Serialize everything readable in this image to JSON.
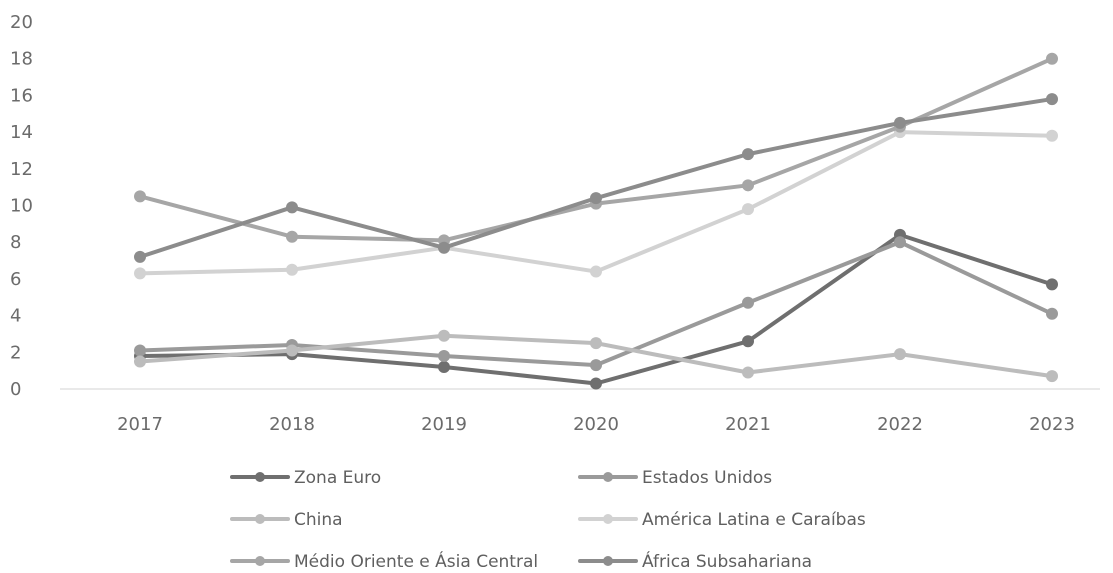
{
  "chart_data": {
    "type": "line",
    "title": "",
    "xlabel": "",
    "ylabel": "",
    "x": [
      "2017",
      "2018",
      "2019",
      "2020",
      "2021",
      "2022",
      "2023"
    ],
    "ylim": [
      0,
      20
    ],
    "yticks": [
      0,
      2,
      4,
      6,
      8,
      10,
      12,
      14,
      16,
      18,
      20
    ],
    "grid": "baseline only",
    "legend_position": "bottom",
    "series": [
      {
        "name": "Zona Euro",
        "color": "#6f6f6f",
        "values": [
          1.8,
          1.9,
          1.2,
          0.3,
          2.6,
          8.4,
          5.7
        ]
      },
      {
        "name": "Estados Unidos",
        "color": "#9a9a9a",
        "values": [
          2.1,
          2.4,
          1.8,
          1.3,
          4.7,
          8.0,
          4.1
        ]
      },
      {
        "name": "China",
        "color": "#bcbcbc",
        "values": [
          1.5,
          2.1,
          2.9,
          2.5,
          0.9,
          1.9,
          0.7
        ]
      },
      {
        "name": "América Latina e Caraíbas",
        "color": "#d2d2d2",
        "values": [
          6.3,
          6.5,
          7.7,
          6.4,
          9.8,
          14.0,
          13.8
        ]
      },
      {
        "name": "Médio Oriente e Ásia Central",
        "color": "#a6a6a6",
        "values": [
          10.5,
          8.3,
          8.1,
          10.1,
          11.1,
          14.3,
          18.0
        ]
      },
      {
        "name": "África Subsahariana",
        "color": "#8c8c8c",
        "values": [
          7.2,
          9.9,
          7.7,
          10.4,
          12.8,
          14.5,
          15.8
        ]
      }
    ]
  }
}
